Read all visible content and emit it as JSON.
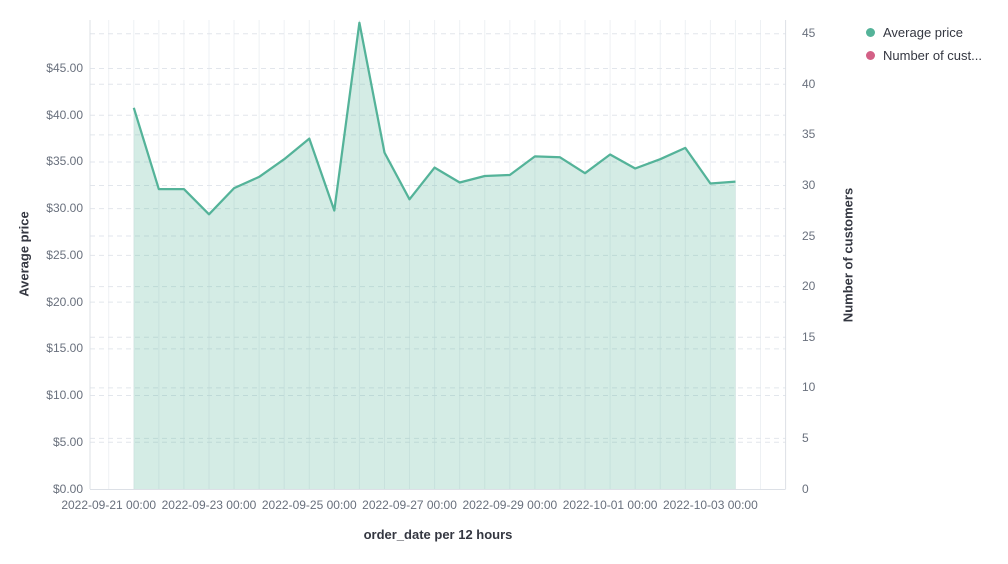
{
  "chart_data": {
    "type": "area",
    "title": "",
    "xlabel": "order_date per 12 hours",
    "x": [
      "2022-09-21 12:00",
      "2022-09-22 00:00",
      "2022-09-22 12:00",
      "2022-09-23 00:00",
      "2022-09-23 12:00",
      "2022-09-24 00:00",
      "2022-09-24 12:00",
      "2022-09-25 00:00",
      "2022-09-25 12:00",
      "2022-09-26 00:00",
      "2022-09-26 12:00",
      "2022-09-27 00:00",
      "2022-09-27 12:00",
      "2022-09-28 00:00",
      "2022-09-28 12:00",
      "2022-09-29 00:00",
      "2022-09-29 12:00",
      "2022-09-30 00:00",
      "2022-09-30 12:00",
      "2022-10-01 00:00",
      "2022-10-01 12:00",
      "2022-10-02 00:00",
      "2022-10-02 12:00",
      "2022-10-03 00:00",
      "2022-10-03 12:00"
    ],
    "series": [
      {
        "name": "Average price",
        "axis": "left",
        "color": "#54B399",
        "visible": true,
        "values": [
          40.8,
          32.1,
          32.1,
          29.4,
          32.2,
          33.4,
          35.3,
          37.5,
          29.8,
          49.9,
          36.0,
          31.0,
          34.4,
          32.8,
          33.5,
          33.6,
          35.6,
          35.5,
          33.8,
          35.8,
          34.3,
          35.3,
          36.5,
          32.7,
          32.9
        ]
      },
      {
        "name": "Number of customers",
        "axis": "right",
        "color": "#D36086",
        "visible": false,
        "values": []
      }
    ],
    "left_axis": {
      "title": "Average price",
      "ylim": [
        0,
        50.2
      ],
      "tick_values": [
        0,
        5,
        10,
        15,
        20,
        25,
        30,
        35,
        40,
        45
      ],
      "tick_labels": [
        "$0.00",
        "$5.00",
        "$10.00",
        "$15.00",
        "$20.00",
        "$25.00",
        "$30.00",
        "$35.00",
        "$40.00",
        "$45.00"
      ]
    },
    "right_axis": {
      "title": "Number of customers",
      "ylim": [
        0,
        46.4
      ],
      "tick_values": [
        0,
        5,
        10,
        15,
        20,
        25,
        30,
        35,
        40,
        45
      ],
      "tick_labels": [
        "0",
        "5",
        "10",
        "15",
        "20",
        "25",
        "30",
        "35",
        "40",
        "45"
      ]
    },
    "x_axis": {
      "title": "order_date per 12 hours",
      "tick_labels": [
        "2022-09-21 00:00",
        "2022-09-23 00:00",
        "2022-09-25 00:00",
        "2022-09-27 00:00",
        "2022-09-29 00:00",
        "2022-10-01 00:00",
        "2022-10-03 00:00"
      ],
      "grid": true
    },
    "legend_position": "top-right"
  },
  "legend": {
    "items": [
      {
        "label": "Average price",
        "color": "#54B399"
      },
      {
        "label": "Number of cust...",
        "color": "#D36086"
      }
    ]
  },
  "colors": {
    "area_line": "#54B399",
    "area_fill": "rgba(84,179,153,0.25)",
    "grid_vertical": "#eef1f4",
    "grid_dashed": "#e2e6ec",
    "axis_line": "#dce0e6",
    "tick_text": "#69707d",
    "title_text": "#343741"
  }
}
